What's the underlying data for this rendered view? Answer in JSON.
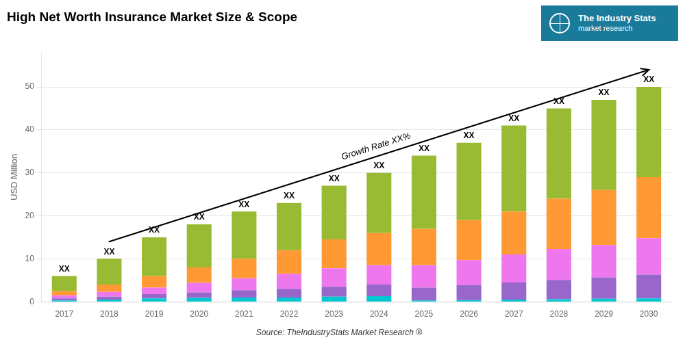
{
  "chart_data": {
    "type": "bar",
    "title": "High Net Worth Insurance Market Size & Scope",
    "y_label": "USD Million",
    "source": "Source: TheIndustryStats Market Research ®",
    "categories": [
      "2017",
      "2018",
      "2019",
      "2020",
      "2021",
      "2022",
      "2023",
      "2024",
      "2025",
      "2026",
      "2027",
      "2028",
      "2029",
      "2030"
    ],
    "series": [
      {
        "color": "#00c8d0",
        "values": [
          0.3,
          0.5,
          0.8,
          0.9,
          1.0,
          1.0,
          1.2,
          1.3,
          0.3,
          0.4,
          0.5,
          0.6,
          0.7,
          0.8
        ]
      },
      {
        "color": "#9966cc",
        "values": [
          0.5,
          0.7,
          1.0,
          1.3,
          1.7,
          2.0,
          2.3,
          2.7,
          3.0,
          3.5,
          4.0,
          4.5,
          5.0,
          5.5
        ]
      },
      {
        "color": "#ee77ee",
        "values": [
          0.7,
          1.1,
          1.5,
          2.2,
          2.8,
          3.5,
          4.3,
          4.5,
          5.2,
          5.8,
          6.5,
          7.2,
          7.5,
          8.5
        ]
      },
      {
        "color": "#ff9933",
        "values": [
          1.0,
          1.7,
          2.7,
          3.6,
          4.5,
          5.5,
          6.7,
          7.5,
          8.5,
          9.3,
          10.0,
          11.7,
          12.8,
          14.2
        ]
      },
      {
        "color": "#99bb33",
        "values": [
          3.5,
          6.0,
          9.0,
          10.0,
          11.0,
          11.0,
          12.5,
          14.0,
          17.0,
          18.0,
          20.0,
          21.0,
          21.0,
          21.0
        ]
      }
    ],
    "totals": [
      6,
      10,
      15,
      18,
      21,
      23,
      27,
      30,
      34,
      37,
      41,
      45,
      47,
      50
    ],
    "total_labels": [
      "XX",
      "XX",
      "XX",
      "XX",
      "XX",
      "XX",
      "XX",
      "XX",
      "XX",
      "XX",
      "XX",
      "XX",
      "XX",
      "XX"
    ],
    "annotations": [
      {
        "type": "arrow",
        "x": [
          "2018",
          "2030"
        ],
        "y": [
          14,
          54
        ],
        "text": "Growth Rate XX%"
      }
    ],
    "logo": {
      "title": "The Industry Stats",
      "subtitle": "market research",
      "color": "#1a7a9a"
    },
    "stacked": true,
    "ylim": [
      0,
      58
    ],
    "yticks": [
      0,
      10,
      20,
      30,
      40,
      50
    ],
    "grid": true
  }
}
